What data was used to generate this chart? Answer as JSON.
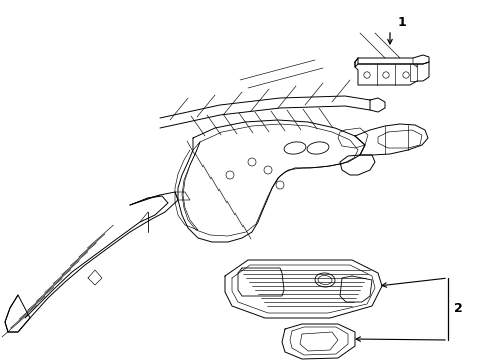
{
  "background_color": "#ffffff",
  "line_color": "#000000",
  "label1": "1",
  "label2": "2",
  "figsize": [
    4.89,
    3.6
  ],
  "dpi": 100,
  "lw": 0.7,
  "lw_thin": 0.45,
  "lw_med": 0.6
}
